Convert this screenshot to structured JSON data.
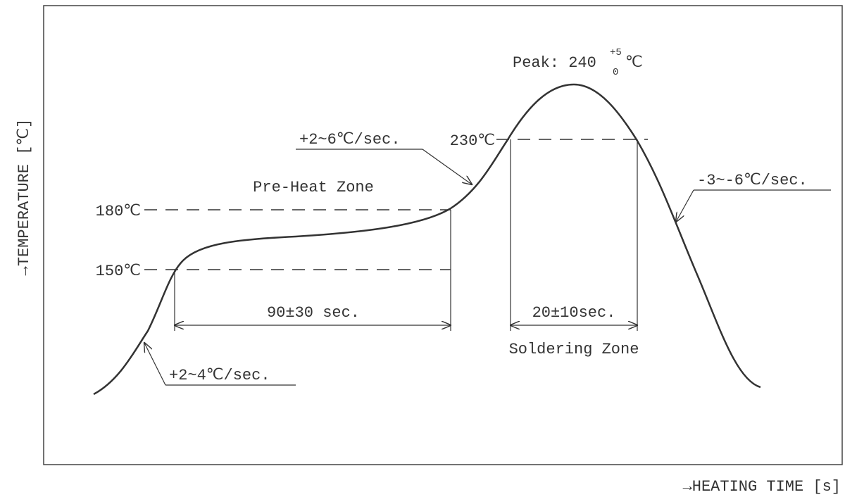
{
  "axes": {
    "y_label": "→TEMPERATURE [℃]",
    "x_label": "→HEATING TIME [s]"
  },
  "peak": {
    "label": "Peak: 240",
    "upper": "+5",
    "lower": "0",
    "unit": "℃"
  },
  "levels": {
    "t230": "230℃",
    "t180": "180℃",
    "t150": "150℃"
  },
  "zones": {
    "preheat": "Pre-Heat Zone",
    "soldering": "Soldering Zone"
  },
  "durations": {
    "preheat": "90±30 sec.",
    "soldering": "20±10sec."
  },
  "rates": {
    "rise1": "+2~4℃/sec.",
    "rise2": "+2~6℃/sec.",
    "fall": "-3~-6℃/sec."
  }
}
